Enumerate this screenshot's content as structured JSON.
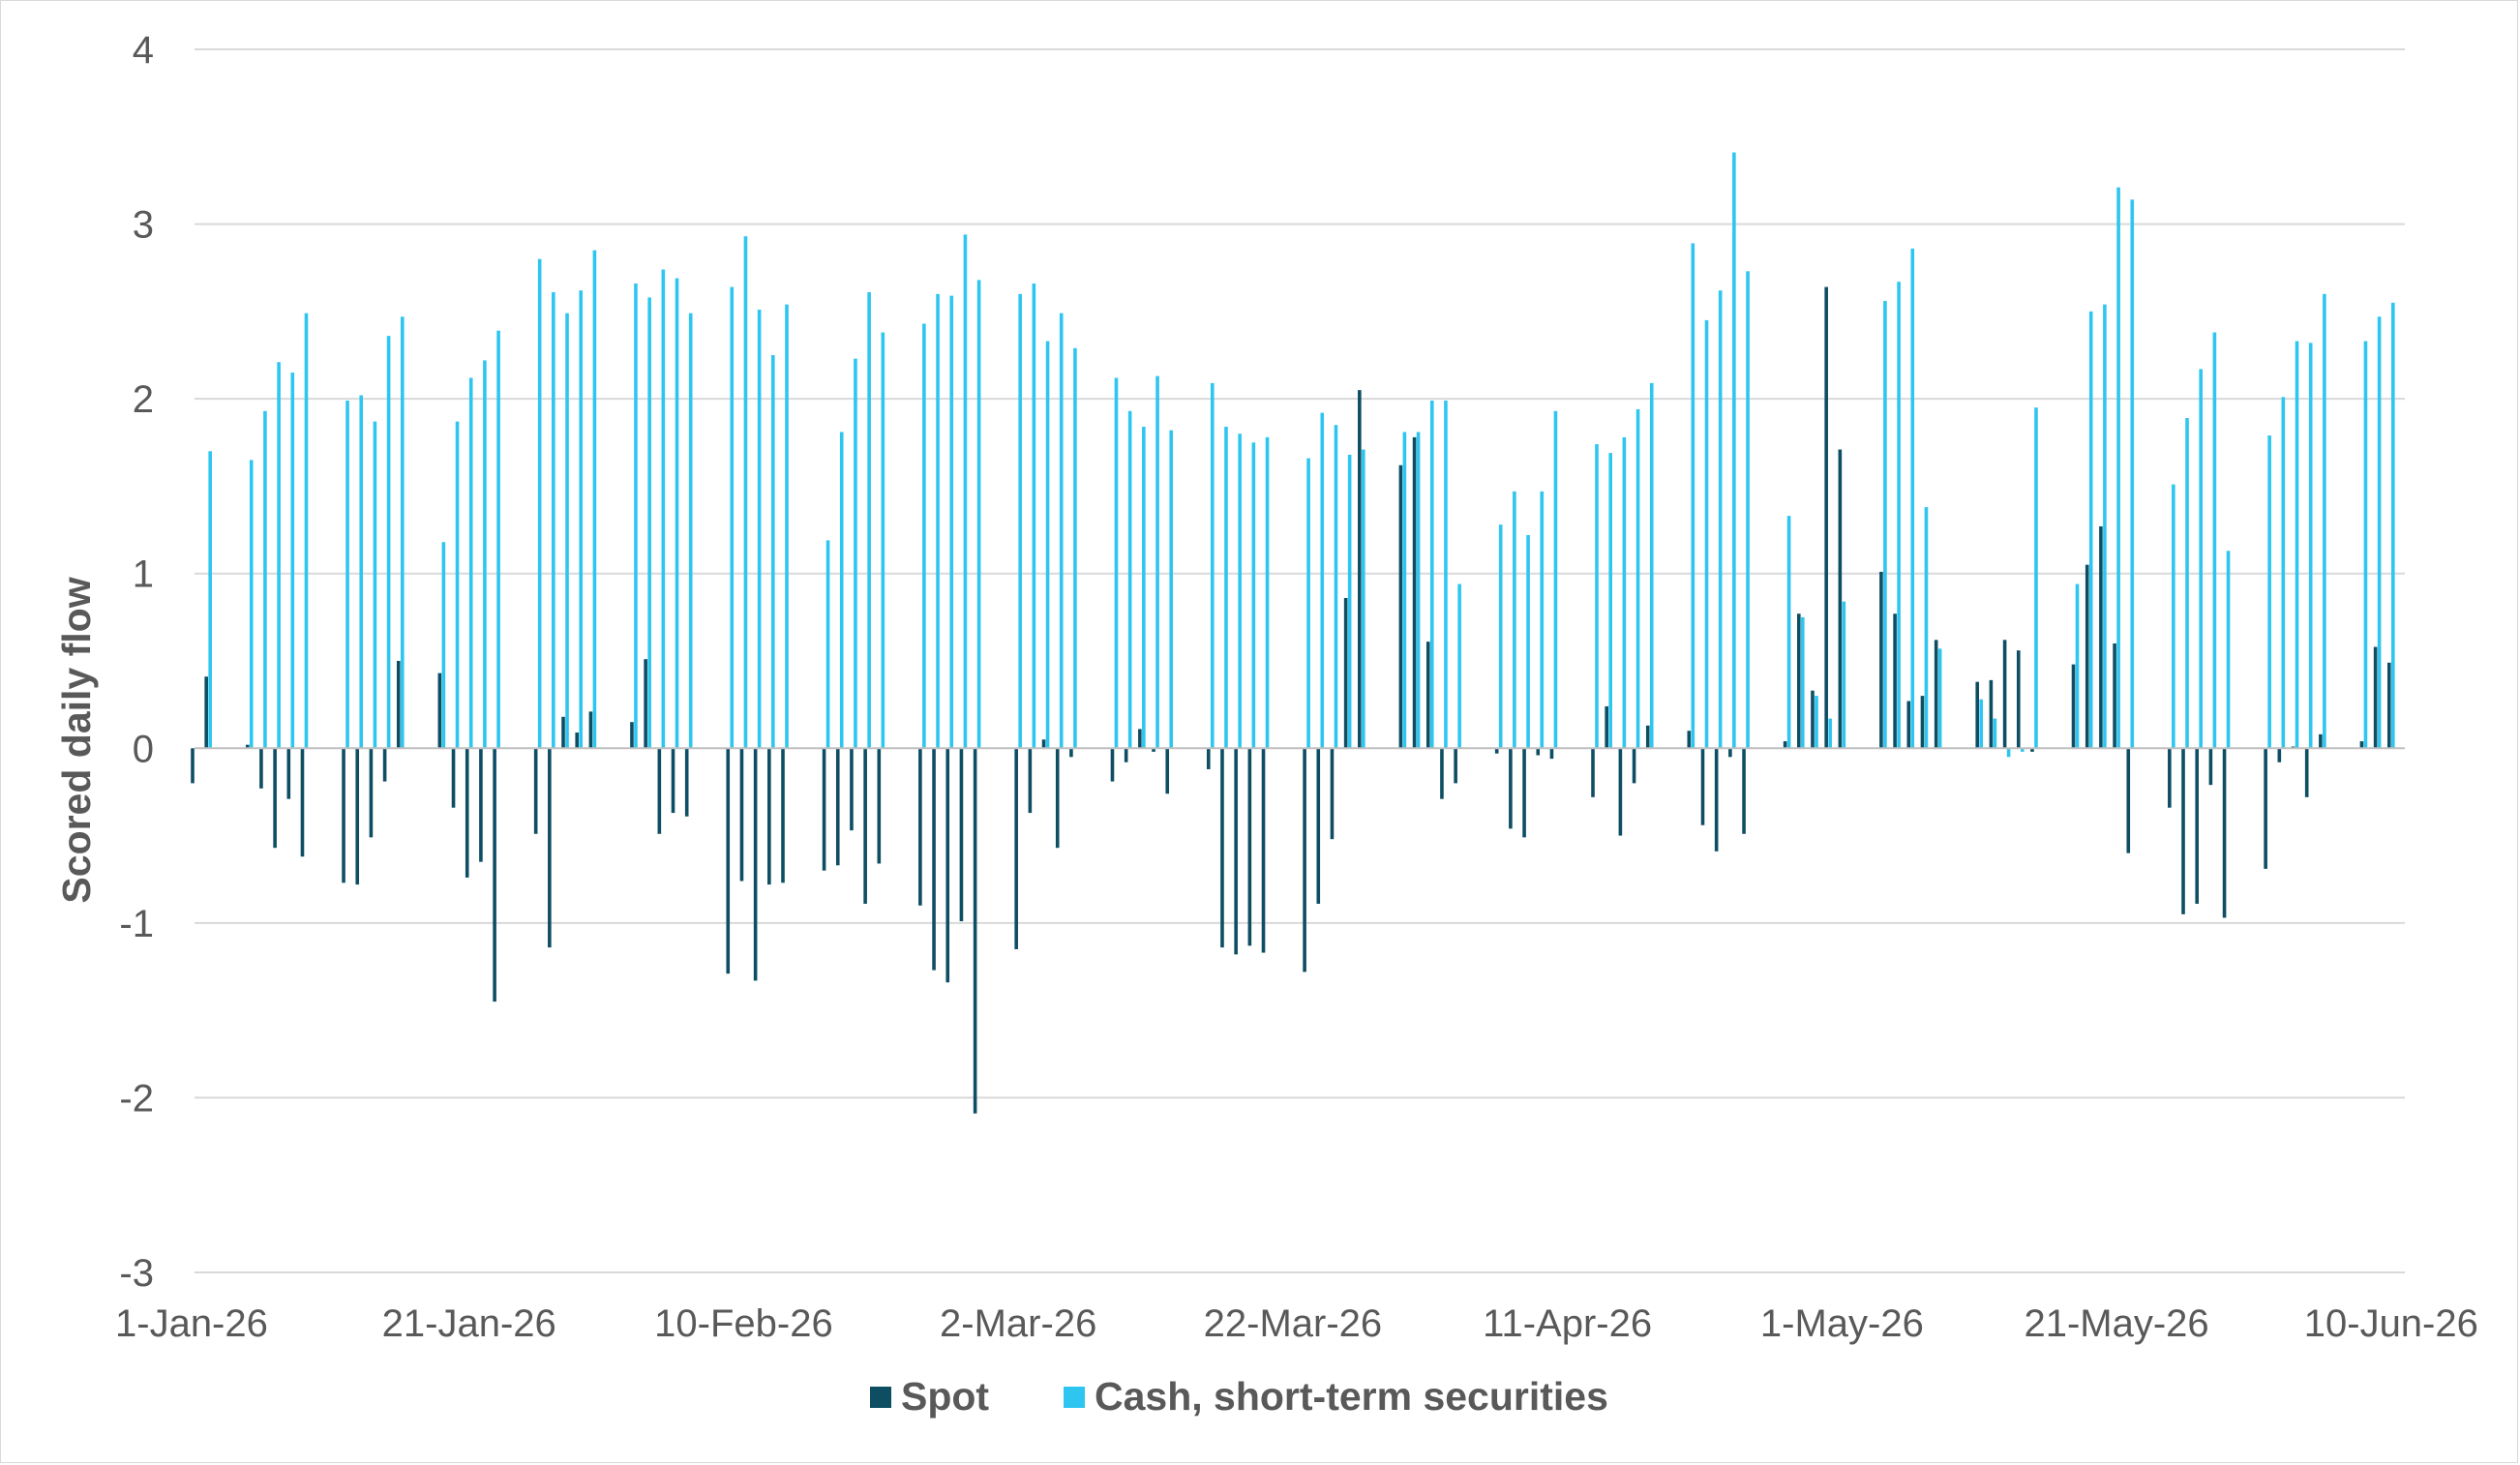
{
  "chart_data": {
    "type": "bar",
    "title": "",
    "xlabel": "",
    "ylabel": "Scored daily flow",
    "ylim": [
      -3,
      4
    ],
    "yticks": [
      -3,
      -2,
      -1,
      0,
      1,
      2,
      3,
      4
    ],
    "grid": "horizontal",
    "legend_position": "bottom",
    "x_start": "1-Jan-26",
    "x_end": "11-Jun-26",
    "x_ticks": [
      "1-Jan-26",
      "21-Jan-26",
      "10-Feb-26",
      "2-Mar-26",
      "22-Mar-26",
      "11-Apr-26",
      "1-May-26",
      "21-May-26",
      "10-Jun-26"
    ],
    "colors": {
      "Spot": "#0e4e63",
      "Cash, short-term securities": "#2ec6f0",
      "grid": "#d9d9d9",
      "axis": "#bfbfbf"
    },
    "series": [
      {
        "name": "Spot",
        "points": [
          [
            "1-Jan-26",
            -0.2
          ],
          [
            "2-Jan-26",
            0.41
          ],
          [
            "5-Jan-26",
            0.02
          ],
          [
            "6-Jan-26",
            -0.23
          ],
          [
            "7-Jan-26",
            -0.57
          ],
          [
            "8-Jan-26",
            -0.29
          ],
          [
            "9-Jan-26",
            -0.62
          ],
          [
            "12-Jan-26",
            -0.77
          ],
          [
            "13-Jan-26",
            -0.78
          ],
          [
            "14-Jan-26",
            -0.51
          ],
          [
            "15-Jan-26",
            -0.19
          ],
          [
            "16-Jan-26",
            0.5
          ],
          [
            "19-Jan-26",
            0.43
          ],
          [
            "20-Jan-26",
            -0.34
          ],
          [
            "21-Jan-26",
            -0.74
          ],
          [
            "22-Jan-26",
            -0.65
          ],
          [
            "23-Jan-26",
            -1.45
          ],
          [
            "26-Jan-26",
            -0.49
          ],
          [
            "27-Jan-26",
            -1.14
          ],
          [
            "28-Jan-26",
            0.18
          ],
          [
            "29-Jan-26",
            0.09
          ],
          [
            "30-Jan-26",
            0.21
          ],
          [
            "2-Feb-26",
            0.15
          ],
          [
            "3-Feb-26",
            0.51
          ],
          [
            "4-Feb-26",
            -0.49
          ],
          [
            "5-Feb-26",
            -0.37
          ],
          [
            "6-Feb-26",
            -0.39
          ],
          [
            "9-Feb-26",
            -1.29
          ],
          [
            "10-Feb-26",
            -0.76
          ],
          [
            "11-Feb-26",
            -1.33
          ],
          [
            "12-Feb-26",
            -0.78
          ],
          [
            "13-Feb-26",
            -0.77
          ],
          [
            "16-Feb-26",
            -0.7
          ],
          [
            "17-Feb-26",
            -0.67
          ],
          [
            "18-Feb-26",
            -0.47
          ],
          [
            "19-Feb-26",
            -0.89
          ],
          [
            "20-Feb-26",
            -0.66
          ],
          [
            "23-Feb-26",
            -0.9
          ],
          [
            "24-Feb-26",
            -1.27
          ],
          [
            "25-Feb-26",
            -1.34
          ],
          [
            "26-Feb-26",
            -0.99
          ],
          [
            "27-Feb-26",
            -2.09
          ],
          [
            "2-Mar-26",
            -1.15
          ],
          [
            "3-Mar-26",
            -0.37
          ],
          [
            "4-Mar-26",
            0.05
          ],
          [
            "5-Mar-26",
            -0.57
          ],
          [
            "6-Mar-26",
            -0.05
          ],
          [
            "9-Mar-26",
            -0.19
          ],
          [
            "10-Mar-26",
            -0.08
          ],
          [
            "11-Mar-26",
            0.11
          ],
          [
            "12-Mar-26",
            -0.02
          ],
          [
            "13-Mar-26",
            -0.26
          ],
          [
            "16-Mar-26",
            -0.12
          ],
          [
            "17-Mar-26",
            -1.14
          ],
          [
            "18-Mar-26",
            -1.18
          ],
          [
            "19-Mar-26",
            -1.13
          ],
          [
            "20-Mar-26",
            -1.17
          ],
          [
            "23-Mar-26",
            -1.28
          ],
          [
            "24-Mar-26",
            -0.89
          ],
          [
            "25-Mar-26",
            -0.52
          ],
          [
            "26-Mar-26",
            0.86
          ],
          [
            "27-Mar-26",
            2.05
          ],
          [
            "30-Mar-26",
            1.62
          ],
          [
            "31-Mar-26",
            1.78
          ],
          [
            "1-Apr-26",
            0.61
          ],
          [
            "2-Apr-26",
            -0.29
          ],
          [
            "3-Apr-26",
            -0.2
          ],
          [
            "6-Apr-26",
            -0.03
          ],
          [
            "7-Apr-26",
            -0.46
          ],
          [
            "8-Apr-26",
            -0.51
          ],
          [
            "9-Apr-26",
            -0.04
          ],
          [
            "10-Apr-26",
            -0.06
          ],
          [
            "13-Apr-26",
            -0.28
          ],
          [
            "14-Apr-26",
            0.24
          ],
          [
            "15-Apr-26",
            -0.5
          ],
          [
            "16-Apr-26",
            -0.2
          ],
          [
            "17-Apr-26",
            0.13
          ],
          [
            "20-Apr-26",
            0.1
          ],
          [
            "21-Apr-26",
            -0.44
          ],
          [
            "22-Apr-26",
            -0.59
          ],
          [
            "23-Apr-26",
            -0.05
          ],
          [
            "24-Apr-26",
            -0.49
          ],
          [
            "27-Apr-26",
            0.04
          ],
          [
            "28-Apr-26",
            0.77
          ],
          [
            "29-Apr-26",
            0.33
          ],
          [
            "30-Apr-26",
            2.64
          ],
          [
            "1-May-26",
            1.71
          ],
          [
            "4-May-26",
            1.01
          ],
          [
            "5-May-26",
            0.77
          ],
          [
            "6-May-26",
            0.27
          ],
          [
            "7-May-26",
            0.3
          ],
          [
            "8-May-26",
            0.62
          ],
          [
            "11-May-26",
            0.38
          ],
          [
            "12-May-26",
            0.39
          ],
          [
            "13-May-26",
            0.62
          ],
          [
            "14-May-26",
            0.56
          ],
          [
            "15-May-26",
            -0.02
          ],
          [
            "18-May-26",
            0.48
          ],
          [
            "19-May-26",
            1.05
          ],
          [
            "20-May-26",
            1.27
          ],
          [
            "21-May-26",
            0.6
          ],
          [
            "22-May-26",
            -0.6
          ],
          [
            "25-May-26",
            -0.34
          ],
          [
            "26-May-26",
            -0.95
          ],
          [
            "27-May-26",
            -0.89
          ],
          [
            "28-May-26",
            -0.21
          ],
          [
            "29-May-26",
            -0.97
          ],
          [
            "1-Jun-26",
            -0.69
          ],
          [
            "2-Jun-26",
            -0.08
          ],
          [
            "3-Jun-26",
            0.01
          ],
          [
            "4-Jun-26",
            -0.28
          ],
          [
            "5-Jun-26",
            0.08
          ],
          [
            "8-Jun-26",
            0.04
          ],
          [
            "9-Jun-26",
            0.58
          ],
          [
            "10-Jun-26",
            0.49
          ]
        ]
      },
      {
        "name": "Cash, short-term securities",
        "points": [
          [
            "1-Jan-26",
            0.0
          ],
          [
            "2-Jan-26",
            1.7
          ],
          [
            "5-Jan-26",
            1.65
          ],
          [
            "6-Jan-26",
            1.93
          ],
          [
            "7-Jan-26",
            2.21
          ],
          [
            "8-Jan-26",
            2.15
          ],
          [
            "9-Jan-26",
            2.49
          ],
          [
            "12-Jan-26",
            1.99
          ],
          [
            "13-Jan-26",
            2.02
          ],
          [
            "14-Jan-26",
            1.87
          ],
          [
            "15-Jan-26",
            2.36
          ],
          [
            "16-Jan-26",
            2.47
          ],
          [
            "19-Jan-26",
            1.18
          ],
          [
            "20-Jan-26",
            1.87
          ],
          [
            "21-Jan-26",
            2.12
          ],
          [
            "22-Jan-26",
            2.22
          ],
          [
            "23-Jan-26",
            2.39
          ],
          [
            "26-Jan-26",
            2.8
          ],
          [
            "27-Jan-26",
            2.61
          ],
          [
            "28-Jan-26",
            2.49
          ],
          [
            "29-Jan-26",
            2.62
          ],
          [
            "30-Jan-26",
            2.85
          ],
          [
            "2-Feb-26",
            2.66
          ],
          [
            "3-Feb-26",
            2.58
          ],
          [
            "4-Feb-26",
            2.74
          ],
          [
            "5-Feb-26",
            2.69
          ],
          [
            "6-Feb-26",
            2.49
          ],
          [
            "9-Feb-26",
            2.64
          ],
          [
            "10-Feb-26",
            2.93
          ],
          [
            "11-Feb-26",
            2.51
          ],
          [
            "12-Feb-26",
            2.25
          ],
          [
            "13-Feb-26",
            2.54
          ],
          [
            "16-Feb-26",
            1.19
          ],
          [
            "17-Feb-26",
            1.81
          ],
          [
            "18-Feb-26",
            2.23
          ],
          [
            "19-Feb-26",
            2.61
          ],
          [
            "20-Feb-26",
            2.38
          ],
          [
            "23-Feb-26",
            2.43
          ],
          [
            "24-Feb-26",
            2.6
          ],
          [
            "25-Feb-26",
            2.59
          ],
          [
            "26-Feb-26",
            2.94
          ],
          [
            "27-Feb-26",
            2.68
          ],
          [
            "2-Mar-26",
            2.6
          ],
          [
            "3-Mar-26",
            2.66
          ],
          [
            "4-Mar-26",
            2.33
          ],
          [
            "5-Mar-26",
            2.49
          ],
          [
            "6-Mar-26",
            2.29
          ],
          [
            "9-Mar-26",
            2.12
          ],
          [
            "10-Mar-26",
            1.93
          ],
          [
            "11-Mar-26",
            1.84
          ],
          [
            "12-Mar-26",
            2.13
          ],
          [
            "13-Mar-26",
            1.82
          ],
          [
            "16-Mar-26",
            2.09
          ],
          [
            "17-Mar-26",
            1.84
          ],
          [
            "18-Mar-26",
            1.8
          ],
          [
            "19-Mar-26",
            1.75
          ],
          [
            "20-Mar-26",
            1.78
          ],
          [
            "23-Mar-26",
            1.66
          ],
          [
            "24-Mar-26",
            1.92
          ],
          [
            "25-Mar-26",
            1.85
          ],
          [
            "26-Mar-26",
            1.68
          ],
          [
            "27-Mar-26",
            1.71
          ],
          [
            "30-Mar-26",
            1.81
          ],
          [
            "31-Mar-26",
            1.81
          ],
          [
            "1-Apr-26",
            1.99
          ],
          [
            "2-Apr-26",
            1.99
          ],
          [
            "3-Apr-26",
            0.94
          ],
          [
            "6-Apr-26",
            1.28
          ],
          [
            "7-Apr-26",
            1.47
          ],
          [
            "8-Apr-26",
            1.22
          ],
          [
            "9-Apr-26",
            1.47
          ],
          [
            "10-Apr-26",
            1.93
          ],
          [
            "13-Apr-26",
            1.74
          ],
          [
            "14-Apr-26",
            1.69
          ],
          [
            "15-Apr-26",
            1.78
          ],
          [
            "16-Apr-26",
            1.94
          ],
          [
            "17-Apr-26",
            2.09
          ],
          [
            "20-Apr-26",
            2.89
          ],
          [
            "21-Apr-26",
            2.45
          ],
          [
            "22-Apr-26",
            2.62
          ],
          [
            "23-Apr-26",
            3.41
          ],
          [
            "24-Apr-26",
            2.73
          ],
          [
            "27-Apr-26",
            1.33
          ],
          [
            "28-Apr-26",
            0.75
          ],
          [
            "29-Apr-26",
            0.3
          ],
          [
            "30-Apr-26",
            0.17
          ],
          [
            "1-May-26",
            0.84
          ],
          [
            "4-May-26",
            2.56
          ],
          [
            "5-May-26",
            2.67
          ],
          [
            "6-May-26",
            2.86
          ],
          [
            "7-May-26",
            1.38
          ],
          [
            "8-May-26",
            0.57
          ],
          [
            "11-May-26",
            0.28
          ],
          [
            "12-May-26",
            0.17
          ],
          [
            "13-May-26",
            -0.05
          ],
          [
            "14-May-26",
            -0.02
          ],
          [
            "15-May-26",
            1.95
          ],
          [
            "18-May-26",
            0.94
          ],
          [
            "19-May-26",
            2.5
          ],
          [
            "20-May-26",
            2.54
          ],
          [
            "21-May-26",
            3.21
          ],
          [
            "22-May-26",
            3.14
          ],
          [
            "25-May-26",
            1.51
          ],
          [
            "26-May-26",
            1.89
          ],
          [
            "27-May-26",
            2.17
          ],
          [
            "28-May-26",
            2.38
          ],
          [
            "29-May-26",
            1.13
          ],
          [
            "1-Jun-26",
            1.79
          ],
          [
            "2-Jun-26",
            2.01
          ],
          [
            "3-Jun-26",
            2.33
          ],
          [
            "4-Jun-26",
            2.32
          ],
          [
            "5-Jun-26",
            2.6
          ],
          [
            "8-Jun-26",
            2.33
          ],
          [
            "9-Jun-26",
            2.47
          ],
          [
            "10-Jun-26",
            2.55
          ]
        ]
      }
    ]
  }
}
